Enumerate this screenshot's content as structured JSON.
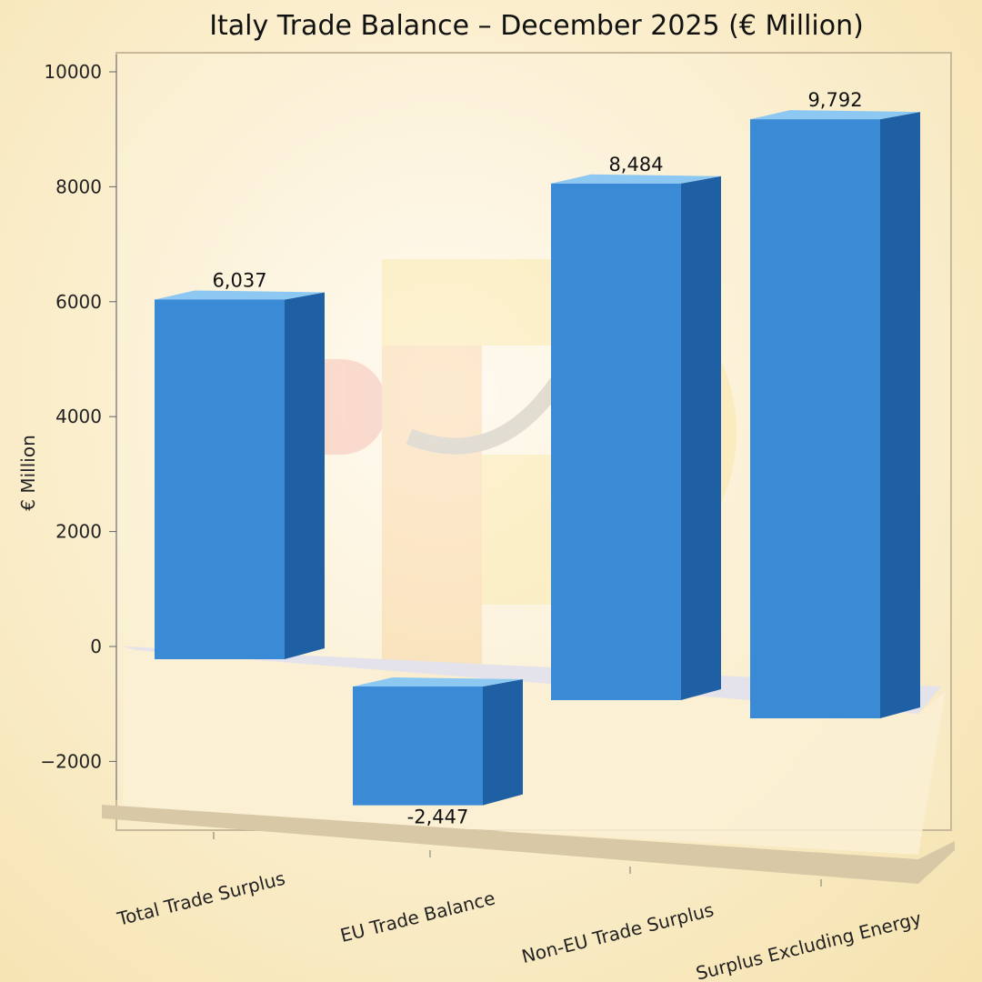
{
  "chart_data": {
    "type": "bar",
    "title": "Italy Trade Balance – December 2025 (€ Million)",
    "xlabel": "",
    "ylabel": "€ Million",
    "categories": [
      "Total Trade Surplus",
      "EU Trade Balance",
      "Non-EU Trade Surplus",
      "Surplus Excluding Energy"
    ],
    "values": [
      6037,
      -2447,
      8484,
      9792
    ],
    "data_labels": [
      "6,037",
      "-2,447",
      "8,484",
      "9,792"
    ],
    "ylim": [
      -2500,
      10000
    ],
    "yticks": [
      -2000,
      0,
      2000,
      4000,
      6000,
      8000,
      10000
    ],
    "ytick_labels": [
      "−2000",
      "0",
      "2000",
      "4000",
      "6000",
      "8000",
      "10000"
    ],
    "grid": false,
    "style": "3d",
    "colors": {
      "bar_front": "#3a8ad6",
      "bar_side": "#1f5fa3",
      "bar_top": "#8cc8f2"
    }
  }
}
